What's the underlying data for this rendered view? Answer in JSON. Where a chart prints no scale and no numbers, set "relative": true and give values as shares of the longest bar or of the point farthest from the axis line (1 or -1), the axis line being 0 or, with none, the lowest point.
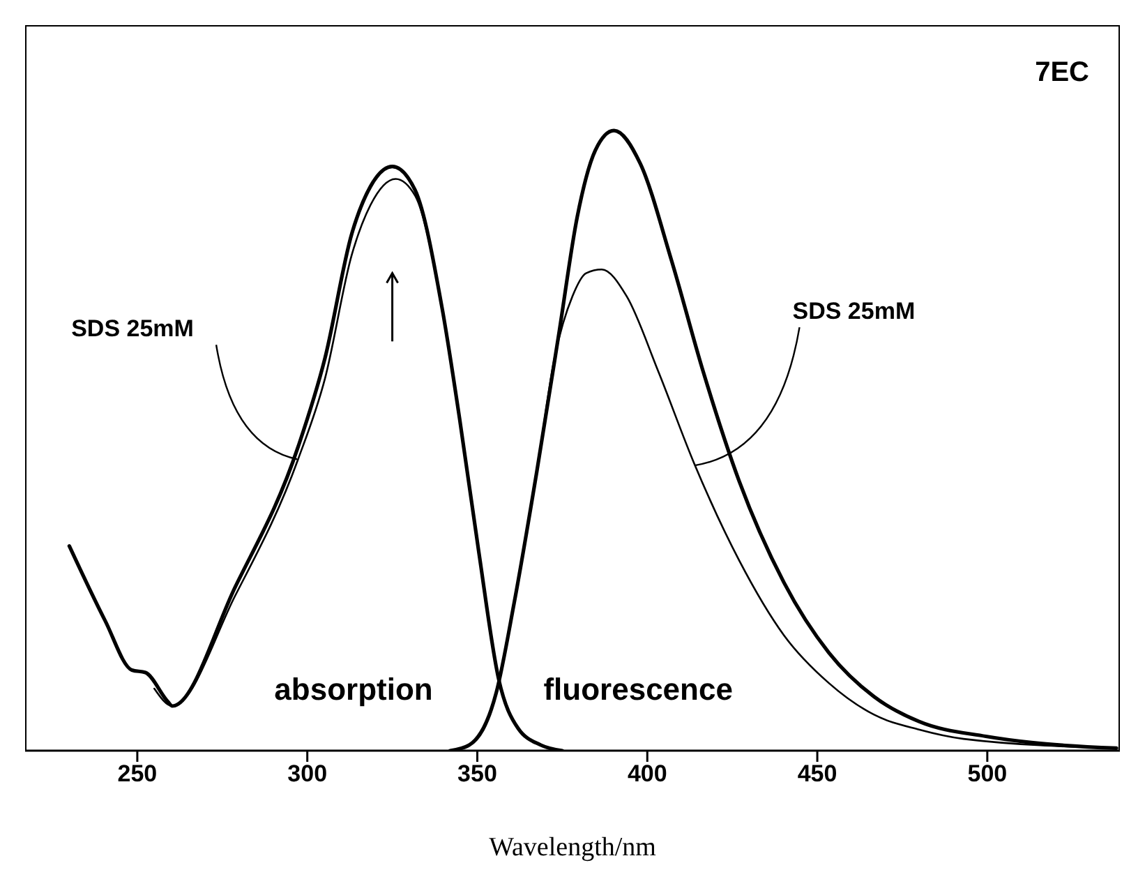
{
  "chart_data": {
    "type": "line",
    "title": "7EC",
    "xlabel": "Wavelength/nm",
    "relative": true,
    "xlim": [
      217,
      539
    ],
    "xticks": [
      250,
      300,
      350,
      400,
      450,
      500
    ],
    "marker": "none",
    "line_style": "solid",
    "series": [
      {
        "color": "#000000",
        "x": [
          230,
          240.5,
          248.4,
          252.4,
          259,
          260.3,
          278.8,
          297.3,
          305.2,
          313.1,
          318.6,
          325,
          331.7,
          339.7,
          344.8,
          350.4,
          356.3,
          362,
          368.7,
          375
        ],
        "values": [
          0.33,
          0.21,
          0.13,
          0.126,
          0.079,
          0.072,
          0.264,
          0.49,
          0.633,
          0.834,
          0.91,
          0.942,
          0.904,
          0.712,
          0.535,
          0.322,
          0.115,
          0.036,
          0.009,
          0
        ]
      },
      {
        "color": "#000000",
        "x": [
          255,
          260.3,
          278.8,
          297.3,
          305.2,
          313.1,
          318.6,
          326,
          331.7,
          339.7,
          344.8,
          350.4,
          356.3,
          362,
          368.7,
          375
        ],
        "values": [
          0.1,
          0.072,
          0.25,
          0.47,
          0.6,
          0.8,
          0.88,
          0.922,
          0.895,
          0.71,
          0.535,
          0.322,
          0.115,
          0.036,
          0.009,
          0
        ]
      },
      {
        "color": "#000000",
        "x": [
          342,
          347.6,
          355.6,
          360.8,
          367.5,
          374.1,
          379.4,
          384.7,
          390.2,
          397.9,
          407.1,
          416.4,
          427,
          440.2,
          453.4,
          466.7,
          479.9,
          499.6,
          513,
          538
        ],
        "values": [
          0,
          0.009,
          0.094,
          0.237,
          0.45,
          0.676,
          0.861,
          0.968,
          1,
          0.947,
          0.791,
          0.612,
          0.435,
          0.271,
          0.158,
          0.087,
          0.047,
          0.023,
          0.013,
          0.004
        ]
      },
      {
        "color": "#000000",
        "x": [
          342,
          347.6,
          355.6,
          360.8,
          367.5,
          372.7,
          378,
          382,
          386.6,
          393.9,
          403.2,
          413.8,
          427,
          440.2,
          453.4,
          466.7,
          479.9,
          493,
          538
        ],
        "values": [
          0,
          0.009,
          0.094,
          0.237,
          0.45,
          0.633,
          0.733,
          0.77,
          0.776,
          0.733,
          0.612,
          0.463,
          0.307,
          0.186,
          0.109,
          0.058,
          0.034,
          0.019,
          0.004
        ]
      }
    ],
    "annotations": [
      {
        "text": "SDS 25mM",
        "x": 297,
        "y": 0.47
      },
      {
        "text": "SDS 25mM",
        "x": 414,
        "y": 0.46
      },
      "absorption",
      "fluorescence"
    ]
  }
}
